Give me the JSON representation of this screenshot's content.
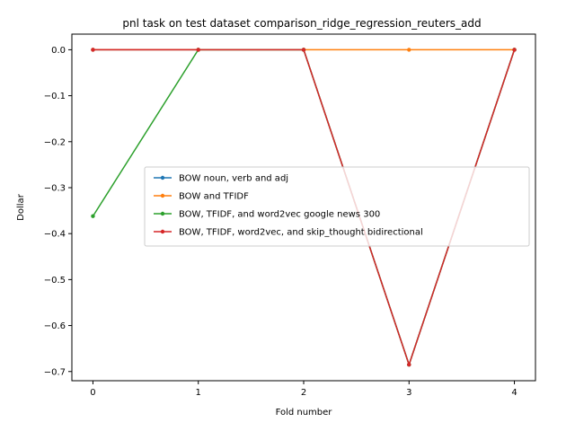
{
  "chart_data": {
    "type": "line",
    "title": "pnl task on test dataset comparison_ridge_regression_reuters_add",
    "xlabel": "Fold number",
    "ylabel": "Dollar",
    "x": [
      0,
      1,
      2,
      3,
      4
    ],
    "xticks": [
      0,
      1,
      2,
      3,
      4
    ],
    "yticks": [
      0.0,
      -0.1,
      -0.2,
      -0.3,
      -0.4,
      -0.5,
      -0.6,
      -0.7
    ],
    "ytick_labels": [
      "0.0",
      "−0.1",
      "−0.2",
      "−0.3",
      "−0.4",
      "−0.5",
      "−0.6",
      "−0.7"
    ],
    "xlim": [
      -0.2,
      4.2
    ],
    "ylim": [
      -0.72,
      0.034
    ],
    "grid": false,
    "legend_position": "center-right",
    "series": [
      {
        "name": "BOW noun, verb and adj",
        "color": "#1f77b4",
        "values": [
          0.0,
          0.0,
          0.0,
          -0.685,
          0.0
        ]
      },
      {
        "name": "BOW and TFIDF",
        "color": "#ff7f0e",
        "values": [
          0.0,
          0.0,
          0.0,
          0.0,
          0.0
        ]
      },
      {
        "name": "BOW, TFIDF, and word2vec google news 300",
        "color": "#2ca02c",
        "values": [
          -0.362,
          0.0,
          0.0,
          -0.685,
          0.0
        ]
      },
      {
        "name": "BOW, TFIDF, word2vec, and skip_thought bidirectional",
        "color": "#d62728",
        "values": [
          0.0,
          0.0,
          0.0,
          -0.685,
          0.0
        ]
      }
    ]
  }
}
